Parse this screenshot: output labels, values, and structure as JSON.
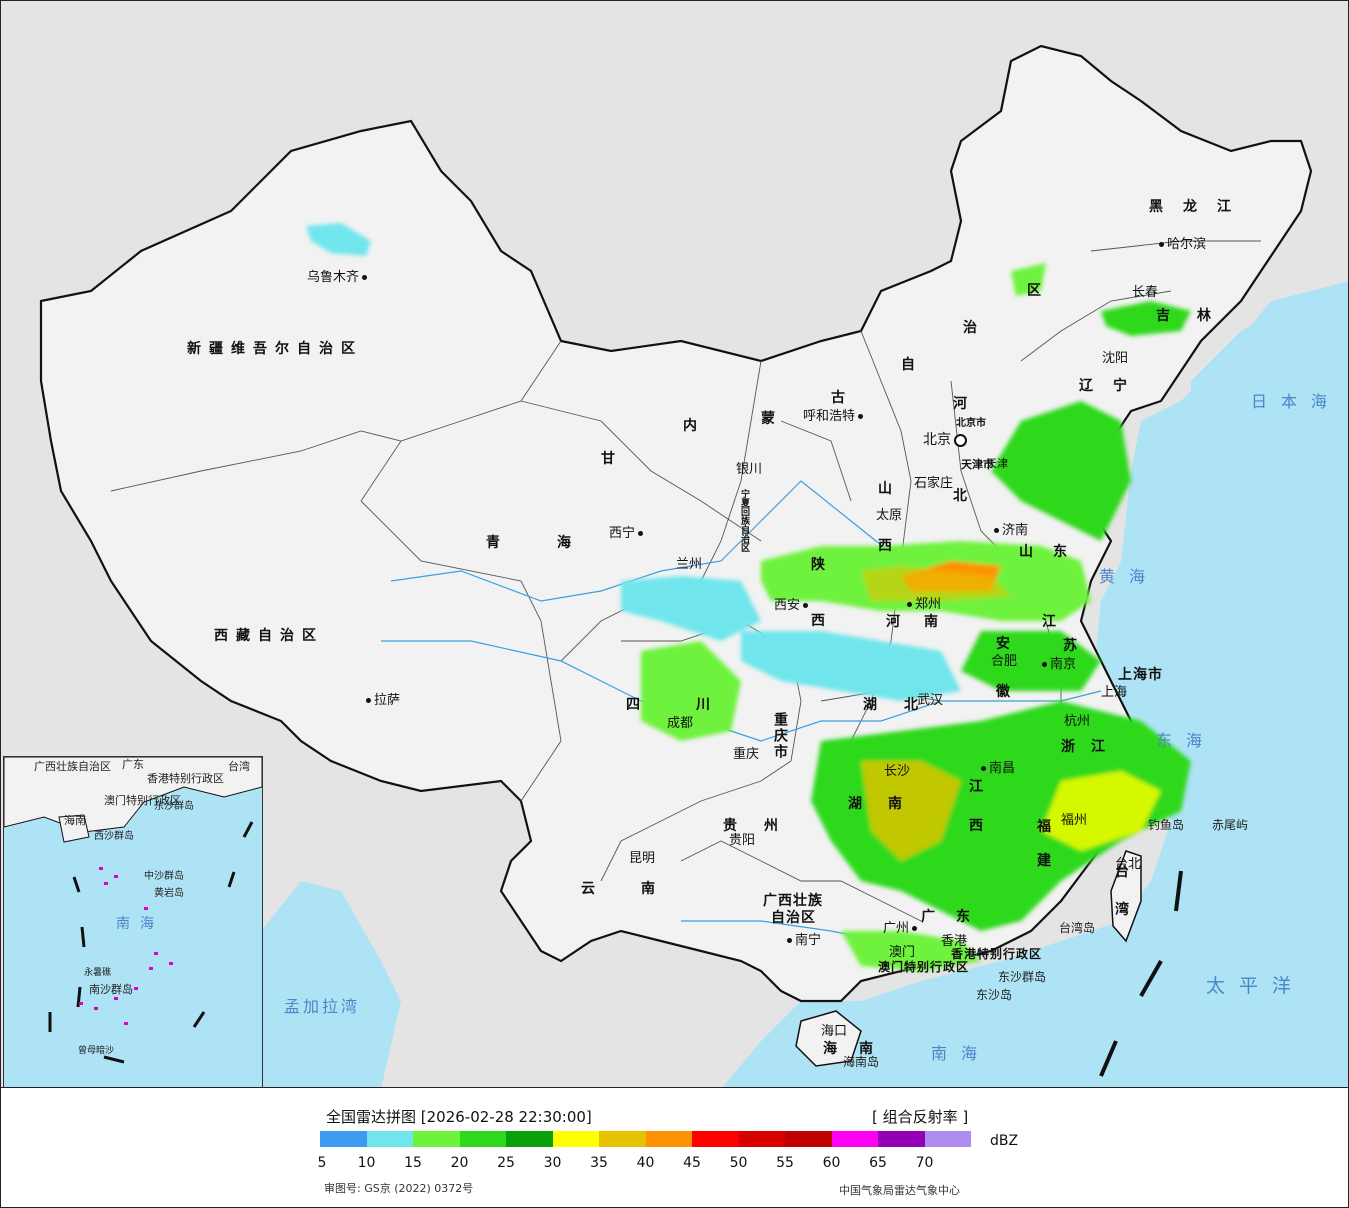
{
  "map": {
    "provinces": {
      "xinjiang": "新疆维吾尔自治区",
      "xizang": "西藏自治区",
      "qinghai_1": "青",
      "qinghai_2": "海",
      "gansu": "甘",
      "sichuan_1": "四",
      "sichuan_2": "川",
      "yunnan_1": "云",
      "yunnan_2": "南",
      "guizhou_1": "贵",
      "guizhou_2": "州",
      "guangxi_1": "广西壮族",
      "guangxi_2": "自治区",
      "guangdong_1": "广",
      "guangdong_2": "东",
      "hainan_1": "海",
      "hainan_2": "南",
      "chongqing": "重庆市",
      "shaanxi_1": "陕",
      "shaanxi_2": "西",
      "ningxia": "宁夏回族自治区",
      "neimenggu_1": "内",
      "neimenggu_2": "蒙",
      "neimenggu_3": "古",
      "neimenggu_4": "自",
      "neimenggu_5": "治",
      "neimenggu_6": "区",
      "shanxi_1": "山",
      "shanxi_2": "西",
      "hebei_1": "河",
      "hebei_2": "北",
      "henan_1": "河",
      "henan_2": "南",
      "hubei_1": "湖",
      "hubei_2": "北",
      "hunan_1": "湖",
      "hunan_2": "南",
      "jiangxi_1": "江",
      "jiangxi_2": "西",
      "anhui_1": "安",
      "anhui_2": "徽",
      "jiangsu_1": "江",
      "jiangsu_2": "苏",
      "zhejiang_1": "浙",
      "zhejiang_2": "江",
      "fujian_1": "福",
      "fujian_2": "建",
      "shandong_1": "山",
      "shandong_2": "东",
      "liaoning_1": "辽",
      "liaoning_2": "宁",
      "jilin_1": "吉",
      "jilin_2": "林",
      "heilongjiang": "黑龙江",
      "tianjin": "天津市",
      "beijing": "北京市",
      "shanghai": "上海市",
      "taiwan_1": "台",
      "taiwan_2": "湾",
      "hongkong": "香港特别行政区",
      "macau": "澳门特别行政区"
    },
    "cities": {
      "urumqi": "乌鲁木齐",
      "lhasa": "拉萨",
      "xining": "西宁",
      "lanzhou": "兰州",
      "yinchuan": "银川",
      "hohhot": "呼和浩特",
      "beijing": "北京",
      "shijiazhuang": "石家庄",
      "taiyuan": "太原",
      "jinan": "济南",
      "xian": "西安",
      "zhengzhou": "郑州",
      "hefei": "合肥",
      "nanjing": "南京",
      "shanghai": "上海",
      "hangzhou": "杭州",
      "wuhan": "武汉",
      "chengdu": "成都",
      "chongqing": "重庆",
      "guiyang": "贵阳",
      "kunming": "昆明",
      "nanning": "南宁",
      "guangzhou": "广州",
      "macau": "澳门",
      "hongkong": "香港",
      "haikou": "海口",
      "changsha": "长沙",
      "nanchang": "南昌",
      "fuzhou": "福州",
      "taipei": "台北",
      "shenyang": "沈阳",
      "changchun": "长春",
      "harbin": "哈尔滨",
      "tianjin": "天津"
    },
    "islands": {
      "hainan_island": "海南岛",
      "taiwan_island": "台湾岛",
      "dongsha_islands": "东沙群岛",
      "dongsha_island": "东沙岛",
      "diaoyu_island": "钓鱼岛",
      "chiwei_islet": "赤尾屿"
    },
    "seas": {
      "japan_sea": "日本海",
      "yellow_sea": "黄海",
      "east_sea": "东海",
      "pacific": "太平洋",
      "south_sea": "南海",
      "bengal_bay": "孟加拉湾"
    },
    "inset": {
      "guangxi": "广西壮族自治区",
      "guangdong": "广东",
      "hongkong": "香港特别行政区",
      "macau": "澳门特别行政区",
      "hainan": "海南",
      "taiwan": "台湾",
      "dongsha": "东沙群岛",
      "xisha": "西沙群岛",
      "zhongsha": "中沙群岛",
      "huangyan": "黄岩岛",
      "south_sea": "南海",
      "nansha": "南沙群岛",
      "yongshu": "永暑礁",
      "zengmu": "曾母暗沙"
    }
  },
  "legend": {
    "title": "全国雷达拼图 [2026-02-28 22:30:00]",
    "product": "[ 组合反射率 ]",
    "unit": "dBZ",
    "ticks": [
      "5",
      "10",
      "15",
      "20",
      "25",
      "30",
      "35",
      "40",
      "45",
      "50",
      "55",
      "60",
      "65",
      "70"
    ],
    "colors": [
      "#3c9bf0",
      "#6fe6ec",
      "#6ef23c",
      "#2fd91c",
      "#0aa00a",
      "#ffff00",
      "#e6c200",
      "#ff9200",
      "#ff0000",
      "#d60000",
      "#c00000",
      "#ff00f0",
      "#9600b4",
      "#ae8cf0"
    ],
    "approval": "审图号: GS京 (2022) 0372号",
    "center": "中国气象局雷达气象中心"
  },
  "colors": {
    "ocean": "#aee3f5",
    "land_china": "#f2f2f2",
    "land_other": "#e4e4e4",
    "border": "#111111"
  }
}
